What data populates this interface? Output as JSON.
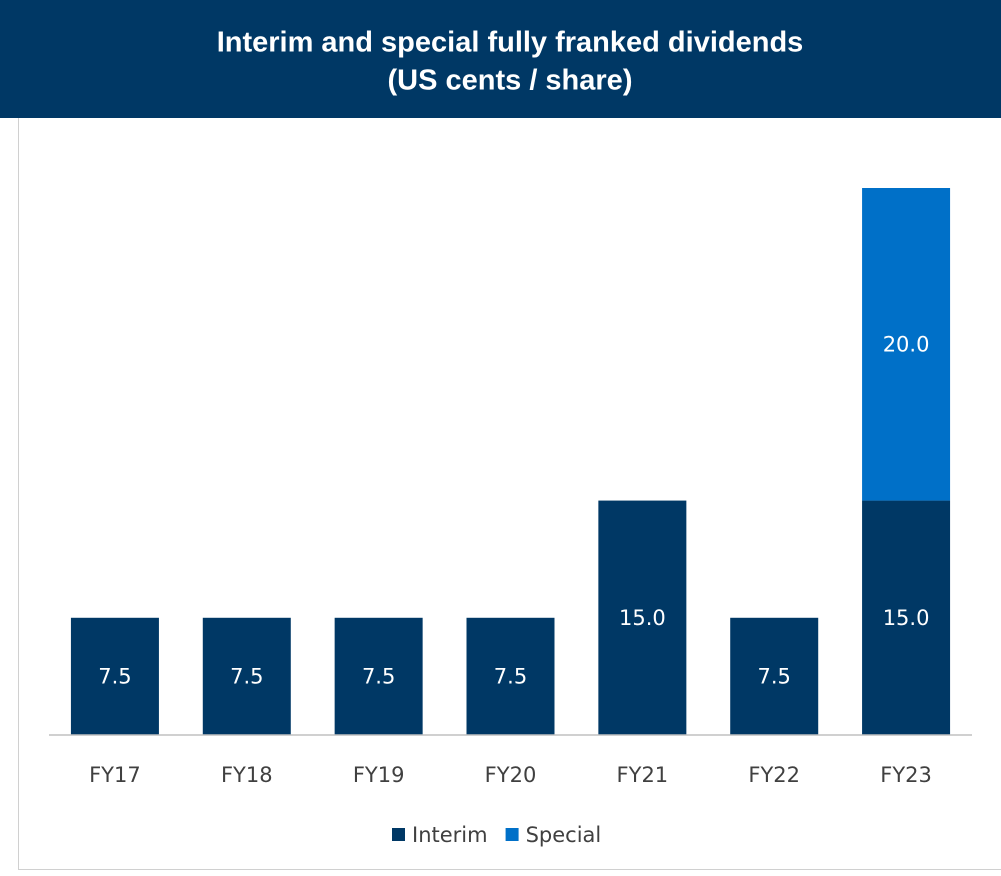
{
  "chart_data": {
    "type": "bar",
    "stacked": true,
    "title": "Interim and special fully franked dividends",
    "subtitle": "(US cents / share)",
    "categories": [
      "FY17",
      "FY18",
      "FY19",
      "FY20",
      "FY21",
      "FY22",
      "FY23"
    ],
    "series": [
      {
        "name": "Interim",
        "color": "#003865",
        "values": [
          7.5,
          7.5,
          7.5,
          7.5,
          15,
          7.5,
          15
        ],
        "value_labels": [
          "7.5",
          "7.5",
          "7.5",
          "7.5",
          "15.0",
          "7.5",
          "15.0"
        ]
      },
      {
        "name": "Special",
        "color": "#0070c8",
        "values": [
          null,
          null,
          null,
          null,
          null,
          null,
          20
        ],
        "value_labels": [
          null,
          null,
          null,
          null,
          null,
          null,
          "20.0"
        ]
      }
    ],
    "ylim": [
      0,
      35
    ],
    "legend": "bottom"
  }
}
